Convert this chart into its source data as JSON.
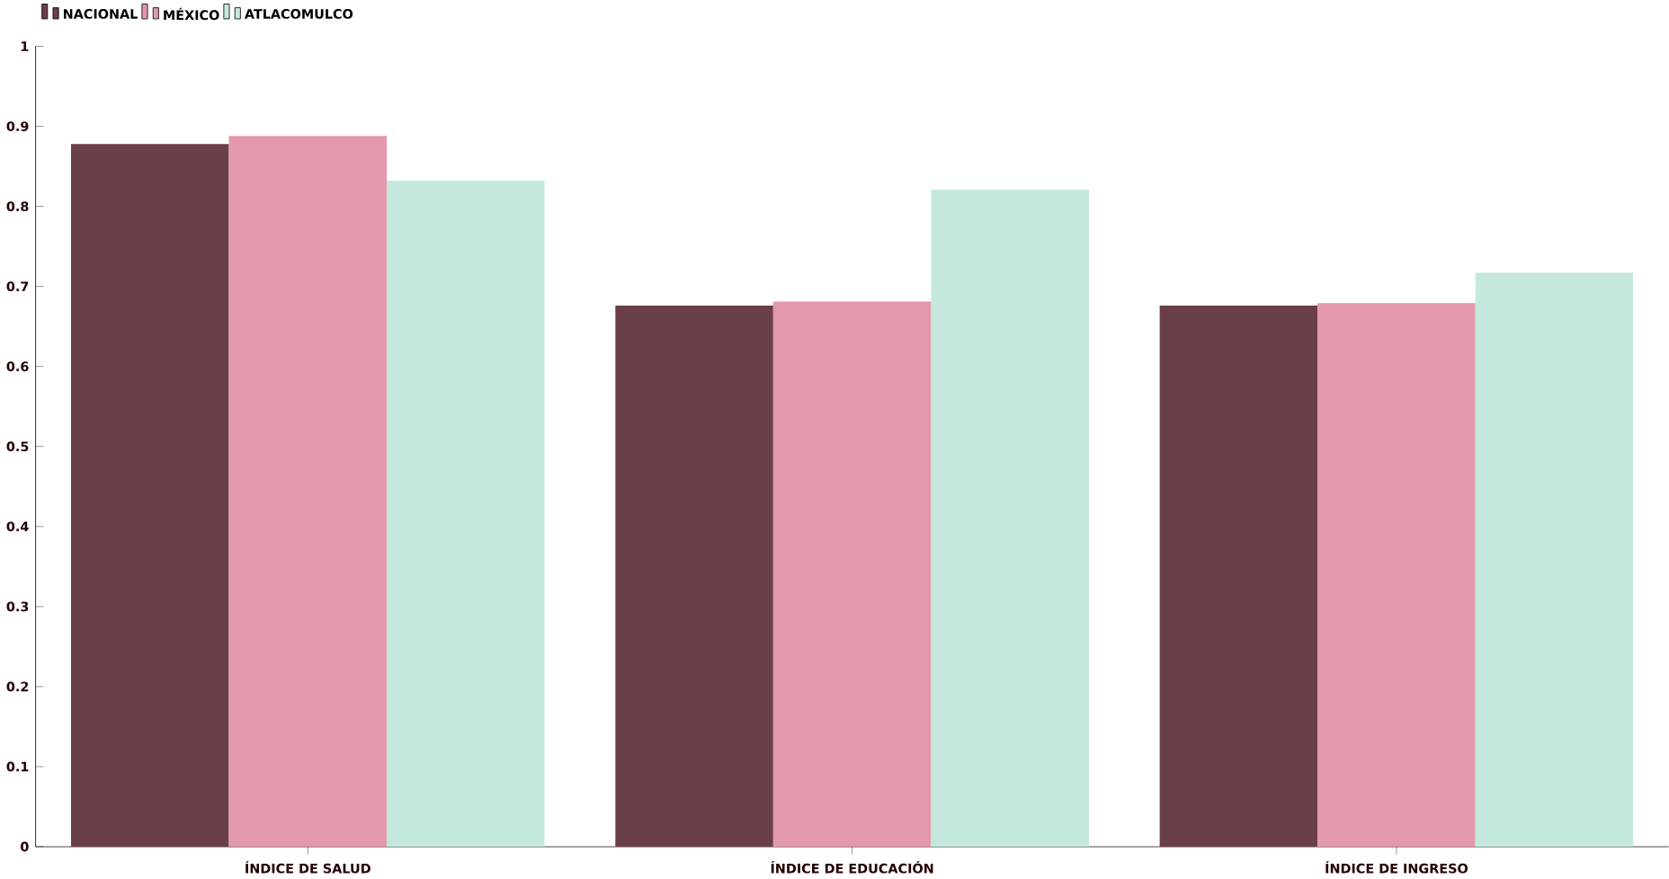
{
  "chart_data": {
    "type": "bar",
    "categories": [
      "ÍNDICE DE SALUD",
      "ÍNDICE DE EDUCACIÓN",
      "ÍNDICE DE INGRESO"
    ],
    "series": [
      {
        "name": "NACIONAL",
        "color": "#6b3f48",
        "values": [
          0.878,
          0.676,
          0.676
        ]
      },
      {
        "name": "MÉXICO",
        "color": "#e398ab",
        "values": [
          0.888,
          0.681,
          0.679
        ]
      },
      {
        "name": "ATLACOMULCO",
        "color": "#c5e8dd",
        "values": [
          0.832,
          0.821,
          0.717
        ]
      }
    ],
    "ylim": [
      0,
      1
    ],
    "yticks": [
      0,
      0.1,
      0.2,
      0.3,
      0.4,
      0.5,
      0.6,
      0.7,
      0.8,
      0.9,
      1
    ],
    "legend": "top left",
    "grid": false
  }
}
